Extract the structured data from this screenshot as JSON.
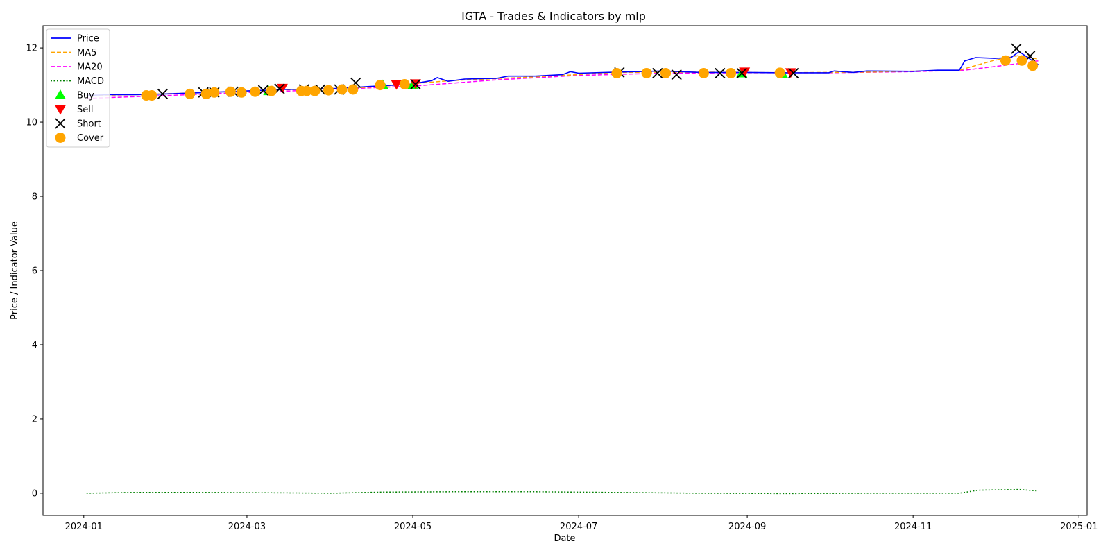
{
  "chart_data": {
    "type": "line",
    "title": "IGTA - Trades & Indicators by mlp",
    "xlabel": "Date",
    "ylabel": "Price / Indicator Value",
    "xlim": [
      "2023-12-17",
      "2025-01-04"
    ],
    "ylim": [
      -0.6,
      12.6
    ],
    "xticks": [
      "2024-01",
      "2024-03",
      "2024-05",
      "2024-07",
      "2024-09",
      "2024-11",
      "2025-01"
    ],
    "yticks": [
      0,
      2,
      4,
      6,
      8,
      10,
      12
    ],
    "grid": false,
    "legend_position": "top-left",
    "colors": {
      "price": "#0000ff",
      "ma5": "#ffa500",
      "ma20": "#ff00ff",
      "macd": "#008000",
      "buy": "#00ff00",
      "sell": "#ff0000",
      "short": "#000000",
      "cover": "#ffa500"
    },
    "legend": [
      "Price",
      "MA5",
      "MA20",
      "MACD",
      "Buy",
      "Sell",
      "Short",
      "Cover"
    ],
    "series": [
      {
        "name": "Price",
        "style": "solid",
        "points": [
          [
            "2024-01-02",
            10.72
          ],
          [
            "2024-01-10",
            10.74
          ],
          [
            "2024-01-20",
            10.74
          ],
          [
            "2024-01-31",
            10.76
          ],
          [
            "2024-02-15",
            10.8
          ],
          [
            "2024-03-01",
            10.84
          ],
          [
            "2024-03-15",
            10.88
          ],
          [
            "2024-04-01",
            10.9
          ],
          [
            "2024-04-15",
            10.96
          ],
          [
            "2024-04-30",
            11.02
          ],
          [
            "2024-05-08",
            11.12
          ],
          [
            "2024-05-10",
            11.2
          ],
          [
            "2024-05-14",
            11.1
          ],
          [
            "2024-05-20",
            11.16
          ],
          [
            "2024-06-01",
            11.18
          ],
          [
            "2024-06-05",
            11.24
          ],
          [
            "2024-06-15",
            11.24
          ],
          [
            "2024-06-25",
            11.28
          ],
          [
            "2024-06-28",
            11.36
          ],
          [
            "2024-07-01",
            11.32
          ],
          [
            "2024-07-15",
            11.35
          ],
          [
            "2024-08-01",
            11.38
          ],
          [
            "2024-08-15",
            11.34
          ],
          [
            "2024-09-01",
            11.34
          ],
          [
            "2024-09-15",
            11.33
          ],
          [
            "2024-10-01",
            11.33
          ],
          [
            "2024-10-03",
            11.38
          ],
          [
            "2024-10-10",
            11.34
          ],
          [
            "2024-10-15",
            11.38
          ],
          [
            "2024-11-01",
            11.37
          ],
          [
            "2024-11-10",
            11.4
          ],
          [
            "2024-11-18",
            11.4
          ],
          [
            "2024-11-20",
            11.65
          ],
          [
            "2024-11-24",
            11.74
          ],
          [
            "2024-12-01",
            11.72
          ],
          [
            "2024-12-07",
            11.74
          ],
          [
            "2024-12-10",
            11.9
          ],
          [
            "2024-12-14",
            11.7
          ],
          [
            "2024-12-17",
            11.55
          ]
        ]
      },
      {
        "name": "MA5",
        "style": "dashed",
        "points": [
          [
            "2024-01-02",
            10.72
          ],
          [
            "2024-01-20",
            10.74
          ],
          [
            "2024-02-15",
            10.8
          ],
          [
            "2024-03-15",
            10.87
          ],
          [
            "2024-04-15",
            10.94
          ],
          [
            "2024-05-15",
            11.12
          ],
          [
            "2024-06-15",
            11.22
          ],
          [
            "2024-07-15",
            11.34
          ],
          [
            "2024-08-15",
            11.35
          ],
          [
            "2024-09-15",
            11.33
          ],
          [
            "2024-10-15",
            11.35
          ],
          [
            "2024-11-18",
            11.4
          ],
          [
            "2024-11-30",
            11.65
          ],
          [
            "2024-12-10",
            11.8
          ],
          [
            "2024-12-17",
            11.7
          ]
        ]
      },
      {
        "name": "MA20",
        "style": "dashed",
        "points": [
          [
            "2024-01-02",
            10.64
          ],
          [
            "2024-02-01",
            10.72
          ],
          [
            "2024-03-01",
            10.8
          ],
          [
            "2024-04-01",
            10.88
          ],
          [
            "2024-05-01",
            10.97
          ],
          [
            "2024-06-01",
            11.14
          ],
          [
            "2024-07-01",
            11.26
          ],
          [
            "2024-08-01",
            11.32
          ],
          [
            "2024-09-01",
            11.33
          ],
          [
            "2024-10-01",
            11.33
          ],
          [
            "2024-11-01",
            11.36
          ],
          [
            "2024-11-20",
            11.4
          ],
          [
            "2024-12-10",
            11.58
          ],
          [
            "2024-12-17",
            11.65
          ]
        ]
      },
      {
        "name": "MACD",
        "style": "dotted",
        "points": [
          [
            "2024-01-02",
            0.0
          ],
          [
            "2024-01-20",
            0.02
          ],
          [
            "2024-02-15",
            0.02
          ],
          [
            "2024-03-15",
            0.01
          ],
          [
            "2024-04-01",
            0.0
          ],
          [
            "2024-04-20",
            0.03
          ],
          [
            "2024-05-15",
            0.04
          ],
          [
            "2024-06-15",
            0.04
          ],
          [
            "2024-07-15",
            0.02
          ],
          [
            "2024-08-15",
            0.0
          ],
          [
            "2024-09-15",
            -0.01
          ],
          [
            "2024-10-15",
            0.0
          ],
          [
            "2024-11-18",
            0.0
          ],
          [
            "2024-11-25",
            0.08
          ],
          [
            "2024-12-10",
            0.1
          ],
          [
            "2024-12-17",
            0.06
          ]
        ]
      }
    ],
    "trades": {
      "buy": [
        [
          "2024-03-09",
          10.84
        ],
        [
          "2024-04-20",
          11.0
        ],
        [
          "2024-05-01",
          11.0
        ],
        [
          "2024-08-30",
          11.32
        ],
        [
          "2024-09-14",
          11.3
        ]
      ],
      "sell": [
        [
          "2024-03-14",
          10.92
        ],
        [
          "2024-04-25",
          11.02
        ],
        [
          "2024-05-02",
          11.04
        ],
        [
          "2024-08-31",
          11.36
        ],
        [
          "2024-09-17",
          11.34
        ]
      ],
      "short": [
        [
          "2024-01-30",
          10.76
        ],
        [
          "2024-02-14",
          10.8
        ],
        [
          "2024-02-18",
          10.8
        ],
        [
          "2024-02-25",
          10.82
        ],
        [
          "2024-03-07",
          10.86
        ],
        [
          "2024-03-13",
          10.9
        ],
        [
          "2024-03-22",
          10.88
        ],
        [
          "2024-03-28",
          10.88
        ],
        [
          "2024-04-04",
          10.88
        ],
        [
          "2024-04-10",
          11.06
        ],
        [
          "2024-05-02",
          11.02
        ],
        [
          "2024-07-16",
          11.34
        ],
        [
          "2024-07-30",
          11.32
        ],
        [
          "2024-08-06",
          11.28
        ],
        [
          "2024-08-22",
          11.32
        ],
        [
          "2024-08-30",
          11.32
        ],
        [
          "2024-09-18",
          11.32
        ],
        [
          "2024-12-09",
          11.98
        ],
        [
          "2024-12-14",
          11.78
        ]
      ],
      "cover": [
        [
          "2024-01-24",
          10.72
        ],
        [
          "2024-01-26",
          10.72
        ],
        [
          "2024-02-09",
          10.76
        ],
        [
          "2024-02-15",
          10.76
        ],
        [
          "2024-02-18",
          10.8
        ],
        [
          "2024-02-24",
          10.82
        ],
        [
          "2024-02-28",
          10.8
        ],
        [
          "2024-03-04",
          10.82
        ],
        [
          "2024-03-10",
          10.84
        ],
        [
          "2024-03-21",
          10.84
        ],
        [
          "2024-03-23",
          10.84
        ],
        [
          "2024-03-26",
          10.84
        ],
        [
          "2024-03-31",
          10.86
        ],
        [
          "2024-04-05",
          10.88
        ],
        [
          "2024-04-09",
          10.88
        ],
        [
          "2024-04-19",
          11.0
        ],
        [
          "2024-04-28",
          11.02
        ],
        [
          "2024-07-15",
          11.32
        ],
        [
          "2024-07-26",
          11.32
        ],
        [
          "2024-08-02",
          11.32
        ],
        [
          "2024-08-16",
          11.32
        ],
        [
          "2024-08-26",
          11.32
        ],
        [
          "2024-09-13",
          11.33
        ],
        [
          "2024-12-05",
          11.66
        ],
        [
          "2024-12-11",
          11.66
        ],
        [
          "2024-12-15",
          11.52
        ]
      ]
    }
  }
}
